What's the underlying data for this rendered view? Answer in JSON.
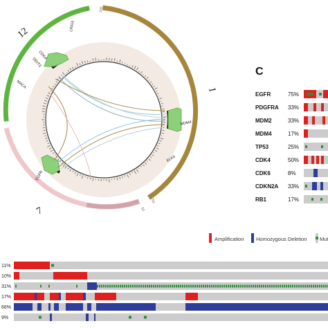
{
  "circos": {
    "chromosomes": [
      {
        "label": "12",
        "color": "#5db53f"
      },
      {
        "label": "1",
        "color": "#a5863a"
      },
      {
        "label": "7",
        "color": "#efbdc2"
      }
    ],
    "ticks": {
      "top_a": "0",
      "top_b": "200",
      "bottom_a": "250",
      "bottom_b": "50"
    },
    "genes": [
      "LRIG3",
      "CDK4",
      "DDIT3",
      "MACA",
      "MDM4",
      "ELK4",
      "EGFR"
    ]
  },
  "panel_c": {
    "label": "C",
    "genes": [
      "EGFR",
      "PDGFRA",
      "MDM2",
      "MDM4",
      "TP53",
      "CDK4",
      "CDK6",
      "CDKN2A",
      "RB1"
    ],
    "percents": [
      "75%",
      "33%",
      "33%",
      "17%",
      "25%",
      "50%",
      "8%",
      "33%",
      "17%"
    ]
  },
  "legend": {
    "amplification": "Amplification",
    "deletion": "Homozygous Deletion",
    "mutation": "Mut"
  },
  "oncoprint": {
    "percents": [
      "11%",
      "10%",
      "31%",
      "17%",
      "66%",
      "9%"
    ]
  },
  "colors": {
    "amplification": "#e0201f",
    "deletion": "#2e3c9c",
    "mutation": "#2e8b3a",
    "track": "#cccccc"
  }
}
